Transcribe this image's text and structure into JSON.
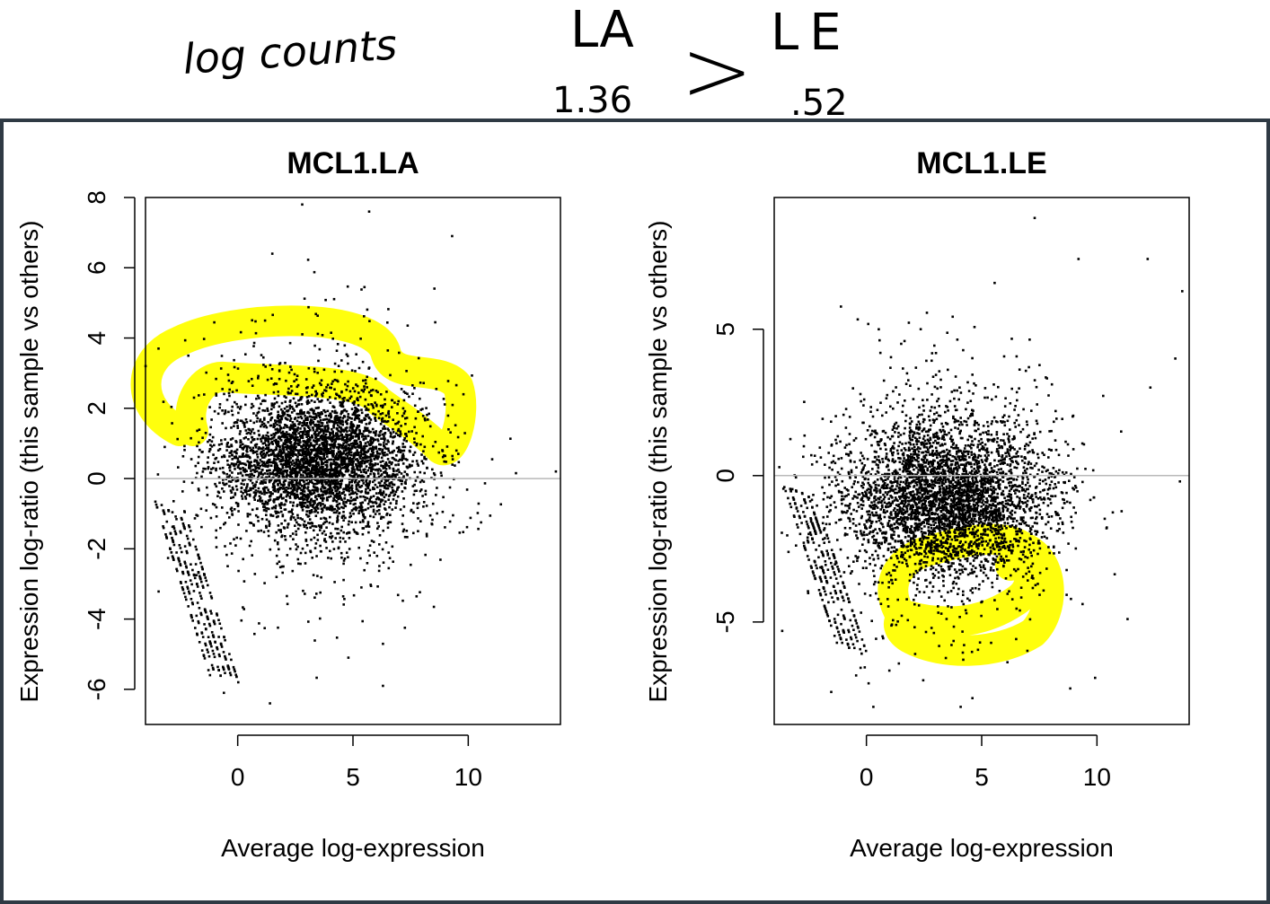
{
  "annotation": {
    "left_text": "log counts",
    "compare_left_label": "LA",
    "compare_left_value": "1.36",
    "comparator": ">",
    "compare_right_label": "LE",
    "compare_right_value": ".52"
  },
  "colors": {
    "highlight": "#ffff00",
    "points": "#000000",
    "zero_line": "#b8b8b8",
    "frame": "#2f3a44"
  },
  "chart_data": [
    {
      "type": "scatter",
      "title": "MCL1.LA",
      "xlabel": "Average log-expression",
      "ylabel": "Expression log-ratio (this sample vs others)",
      "xlim": [
        -4,
        14
      ],
      "ylim": [
        -7,
        8
      ],
      "xticks": [
        0,
        5,
        10
      ],
      "xtick_labels": [
        "0",
        "5",
        "10"
      ],
      "yticks": [
        -6,
        -4,
        -2,
        0,
        2,
        4,
        6,
        8
      ],
      "ytick_labels": [
        "-6",
        "-4",
        "-2",
        "0",
        "2",
        "4",
        "6",
        "8"
      ],
      "reference_line_y": 0,
      "point_count_approx": 20000,
      "cloud_center": {
        "x": 3.5,
        "y": 0.5
      },
      "highlighted_region": {
        "x_range": [
          -4,
          10
        ],
        "y_range": [
          1.5,
          4.5
        ],
        "description_side": "upper"
      },
      "notable_points": [
        {
          "x": 2.8,
          "y": 7.8
        },
        {
          "x": 5.7,
          "y": 7.6
        },
        {
          "x": 9.3,
          "y": 6.9
        },
        {
          "x": 1.5,
          "y": 6.4
        },
        {
          "x": 13.8,
          "y": 0.2
        },
        {
          "x": 1.4,
          "y": -6.4
        },
        {
          "x": -0.6,
          "y": -6.1
        },
        {
          "x": 6.3,
          "y": -5.9
        },
        {
          "x": 4.8,
          "y": -5.1
        }
      ]
    },
    {
      "type": "scatter",
      "title": "MCL1.LE",
      "xlabel": "Average log-expression",
      "ylabel": "Expression log-ratio (this sample vs others)",
      "xlim": [
        -4,
        14
      ],
      "ylim": [
        -8.5,
        9.5
      ],
      "xticks": [
        0,
        5,
        10
      ],
      "xtick_labels": [
        "0",
        "5",
        "10"
      ],
      "yticks": [
        -5,
        0,
        5
      ],
      "ytick_labels": [
        "-5",
        "0",
        "5"
      ],
      "reference_line_y": 0,
      "point_count_approx": 20000,
      "cloud_center": {
        "x": 3.5,
        "y": -0.8
      },
      "highlighted_region": {
        "x_range": [
          1,
          8.5
        ],
        "y_range": [
          -6,
          -2
        ],
        "description_side": "lower"
      },
      "notable_points": [
        {
          "x": 7.3,
          "y": 8.8
        },
        {
          "x": 9.2,
          "y": 7.4
        },
        {
          "x": 12.2,
          "y": 7.4
        },
        {
          "x": 13.7,
          "y": 6.3
        },
        {
          "x": 13.4,
          "y": 4
        },
        {
          "x": 0.3,
          "y": -7.9
        },
        {
          "x": 4.6,
          "y": -7.6
        },
        {
          "x": 13.6,
          "y": -0.2
        }
      ]
    }
  ]
}
